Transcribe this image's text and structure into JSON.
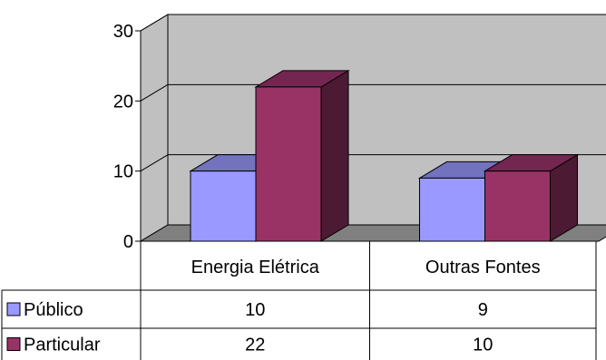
{
  "chart_data": {
    "type": "bar",
    "title": "",
    "xlabel": "",
    "ylabel": "",
    "categories": [
      "Energia Elétrica",
      "Outras Fontes"
    ],
    "series": [
      {
        "name": "Público",
        "values": [
          10,
          9
        ],
        "color": "#9999ff",
        "top_color": "#7272bf",
        "side_color": "#4d4d80"
      },
      {
        "name": "Particular",
        "values": [
          22,
          10
        ],
        "color": "#993366",
        "top_color": "#732650",
        "side_color": "#4d1a33"
      }
    ],
    "ylim": [
      0,
      30
    ],
    "yticks": [
      "0",
      "10",
      "20",
      "30"
    ],
    "grid": true,
    "legend": "data-table",
    "wall_color": "#c0c0c0",
    "floor_color": "#808080"
  }
}
